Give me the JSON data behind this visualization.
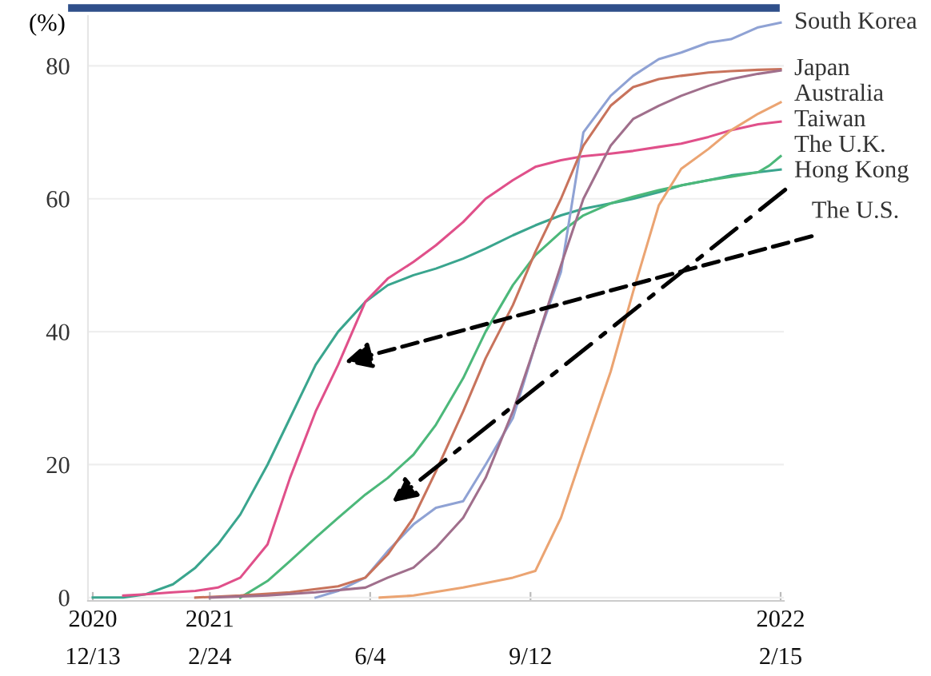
{
  "chart_data": {
    "type": "line",
    "ylabel": "(%)",
    "ylim": [
      -0.5,
      87.5
    ],
    "yticks": [
      0,
      20,
      40,
      60,
      80
    ],
    "xlim": [
      "2020-12-10",
      "2022-02-17"
    ],
    "xticks": [
      {
        "value": "2020-12-13",
        "label": "2020\n12/13"
      },
      {
        "value": "2021-02-24",
        "label": "2021\n2/24"
      },
      {
        "value": "2021-06-04",
        "label": "6/4"
      },
      {
        "value": "2021-09-12",
        "label": "9/12"
      },
      {
        "value": "2022-02-15",
        "label": "2022\n2/15"
      }
    ],
    "grid": "y",
    "marker": "none",
    "line_style": "solid",
    "annotations": [
      {
        "text": "The U.S.",
        "x": "2021-05-19",
        "y": 35.4
      }
    ],
    "series": [
      {
        "color": "#3aa58e",
        "x": [
          "2020-12-13",
          "2021-01-01",
          "2021-01-15",
          "2021-02-01",
          "2021-02-15",
          "2021-03-01",
          "2021-03-15",
          "2021-04-01",
          "2021-04-15",
          "2021-05-01",
          "2021-05-15",
          "2021-06-01",
          "2021-06-15",
          "2021-07-01",
          "2021-07-15",
          "2021-08-01",
          "2021-08-15",
          "2021-09-01",
          "2021-09-15",
          "2021-10-01",
          "2021-10-15",
          "2021-11-01",
          "2021-11-15",
          "2021-12-01",
          "2021-12-15",
          "2022-01-01",
          "2022-01-15",
          "2022-02-01",
          "2022-02-15"
        ],
        "values": [
          0,
          0,
          0.5,
          2,
          4.5,
          8,
          12.5,
          20,
          27,
          35,
          40,
          44.5,
          47,
          48.5,
          49.5,
          51,
          52.5,
          54.5,
          56,
          57.5,
          58.5,
          59.3,
          60,
          61,
          62,
          62.8,
          63.5,
          64,
          64.4
        ]
      },
      {
        "name": "The U.K.",
        "color": "#e0508a",
        "x": [
          "2021-01-01",
          "2021-01-15",
          "2021-02-01",
          "2021-02-15",
          "2021-03-01",
          "2021-03-15",
          "2021-04-01",
          "2021-04-15",
          "2021-05-01",
          "2021-05-15",
          "2021-06-01",
          "2021-06-15",
          "2021-07-01",
          "2021-07-15",
          "2021-08-01",
          "2021-08-15",
          "2021-09-01",
          "2021-09-15",
          "2021-10-01",
          "2021-10-15",
          "2021-11-01",
          "2021-11-15",
          "2021-12-01",
          "2021-12-15",
          "2022-01-01",
          "2022-01-15",
          "2022-02-01",
          "2022-02-15"
        ],
        "values": [
          0.3,
          0.5,
          0.8,
          1,
          1.5,
          3,
          8,
          18,
          28,
          35,
          44.5,
          48,
          50.5,
          53,
          56.5,
          60,
          62.8,
          64.8,
          65.8,
          66.4,
          66.8,
          67.2,
          67.8,
          68.3,
          69.3,
          70.3,
          71.2,
          71.6
        ]
      },
      {
        "name": "Hong Kong",
        "color": "#4cb87a",
        "x": [
          "2021-03-15",
          "2021-04-01",
          "2021-04-15",
          "2021-05-01",
          "2021-05-15",
          "2021-06-01",
          "2021-06-15",
          "2021-07-01",
          "2021-07-15",
          "2021-08-01",
          "2021-08-15",
          "2021-09-01",
          "2021-09-15",
          "2021-10-01",
          "2021-10-15",
          "2021-11-01",
          "2021-11-15",
          "2021-12-01",
          "2021-12-15",
          "2022-01-01",
          "2022-01-15",
          "2022-02-01",
          "2022-02-08",
          "2022-02-15"
        ],
        "values": [
          0,
          2.5,
          5.5,
          9,
          12,
          15.5,
          18,
          21.5,
          26,
          33,
          40,
          47,
          51.5,
          55,
          57.5,
          59.3,
          60.3,
          61.3,
          62,
          62.8,
          63.3,
          64,
          65,
          66.4
        ]
      },
      {
        "name": "South Korea",
        "color": "#8fa2d4",
        "x": [
          "2021-05-01",
          "2021-05-15",
          "2021-06-01",
          "2021-06-15",
          "2021-07-01",
          "2021-07-15",
          "2021-08-01",
          "2021-08-15",
          "2021-09-01",
          "2021-09-15",
          "2021-10-01",
          "2021-10-15",
          "2021-11-01",
          "2021-11-15",
          "2021-12-01",
          "2021-12-15",
          "2022-01-01",
          "2022-01-15",
          "2022-02-01",
          "2022-02-15"
        ],
        "values": [
          0,
          1,
          3,
          7,
          11,
          13.5,
          14.5,
          20,
          27,
          38,
          49,
          70,
          75.5,
          78.5,
          81,
          82,
          83.5,
          84,
          85.8,
          86.5
        ]
      },
      {
        "name": "Japan",
        "color": "#c8735c",
        "x": [
          "2021-02-15",
          "2021-03-15",
          "2021-04-15",
          "2021-05-15",
          "2021-06-01",
          "2021-06-15",
          "2021-07-01",
          "2021-07-15",
          "2021-08-01",
          "2021-08-15",
          "2021-09-01",
          "2021-09-15",
          "2021-10-01",
          "2021-10-15",
          "2021-11-01",
          "2021-11-15",
          "2021-12-01",
          "2021-12-15",
          "2022-01-01",
          "2022-01-15",
          "2022-02-01",
          "2022-02-15"
        ],
        "values": [
          0,
          0.3,
          0.8,
          1.7,
          3,
          6.5,
          12,
          19,
          28,
          36,
          44,
          52,
          60,
          68,
          74,
          76.8,
          78,
          78.5,
          79,
          79.2,
          79.4,
          79.5
        ]
      },
      {
        "name": "Australia",
        "color": "#a06f8c",
        "x": [
          "2021-02-24",
          "2021-04-01",
          "2021-05-01",
          "2021-06-01",
          "2021-06-15",
          "2021-07-01",
          "2021-07-15",
          "2021-08-01",
          "2021-08-15",
          "2021-09-01",
          "2021-09-15",
          "2021-10-01",
          "2021-10-15",
          "2021-11-01",
          "2021-11-15",
          "2021-12-01",
          "2021-12-15",
          "2022-01-01",
          "2022-01-15",
          "2022-02-01",
          "2022-02-15"
        ],
        "values": [
          0,
          0.3,
          0.8,
          1.5,
          3,
          4.5,
          7.5,
          12,
          18,
          28,
          38,
          50,
          60,
          68,
          72,
          74,
          75.5,
          77,
          78,
          78.8,
          79.3
        ]
      },
      {
        "name": "Taiwan",
        "color": "#eba472",
        "x": [
          "2021-06-10",
          "2021-07-01",
          "2021-08-01",
          "2021-09-01",
          "2021-09-15",
          "2021-10-01",
          "2021-10-15",
          "2021-11-01",
          "2021-11-15",
          "2021-12-01",
          "2021-12-15",
          "2022-01-01",
          "2022-01-15",
          "2022-02-01",
          "2022-02-15"
        ],
        "values": [
          0,
          0.3,
          1.5,
          3,
          4,
          12,
          22,
          34,
          46,
          59,
          64.5,
          67.5,
          70.3,
          72.8,
          74.5
        ]
      }
    ]
  }
}
